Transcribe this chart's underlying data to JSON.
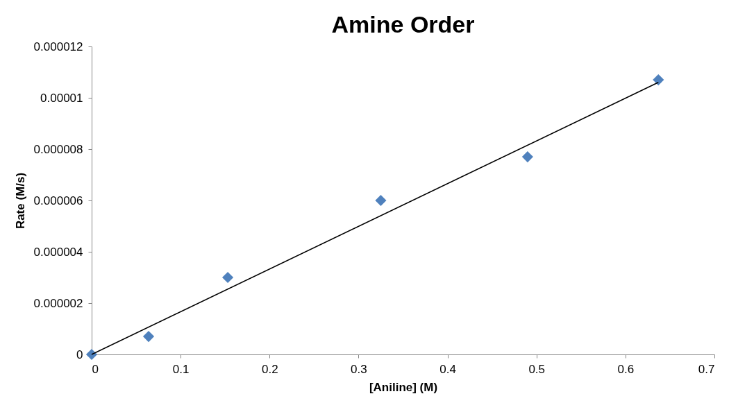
{
  "chart_data": {
    "type": "scatter",
    "title": "Amine Order",
    "xlabel": "[Aniline] (M)",
    "ylabel": "Rate (M/s)",
    "xlim": [
      0,
      0.7
    ],
    "xticks": [
      0,
      0.1,
      0.2,
      0.3,
      0.4,
      0.5,
      0.6,
      0.7
    ],
    "ylim": [
      0,
      1.2e-05
    ],
    "yticks": [
      {
        "value": 0,
        "label": "0"
      },
      {
        "value": 2e-06,
        "label": "0.000002"
      },
      {
        "value": 4e-06,
        "label": "0.000004"
      },
      {
        "value": 6e-06,
        "label": "0.000006"
      },
      {
        "value": 8e-06,
        "label": "0.000008"
      },
      {
        "value": 1e-05,
        "label": "0.00001"
      },
      {
        "value": 1.2e-05,
        "label": "0.000012"
      }
    ],
    "grid": false,
    "marker": "diamond",
    "series": [
      {
        "color": "#4f81bd",
        "x": [
          0,
          0.064,
          0.153,
          0.325,
          0.49,
          0.637
        ],
        "values": [
          0,
          7e-07,
          3e-06,
          6e-06,
          7.7e-06,
          1.07e-05
        ]
      },
      {
        "type": "line",
        "color": "#000000",
        "marker": "none",
        "line_style": "solid",
        "x": [
          0,
          0.637
        ],
        "values": [
          0,
          1.06e-05
        ]
      }
    ]
  }
}
